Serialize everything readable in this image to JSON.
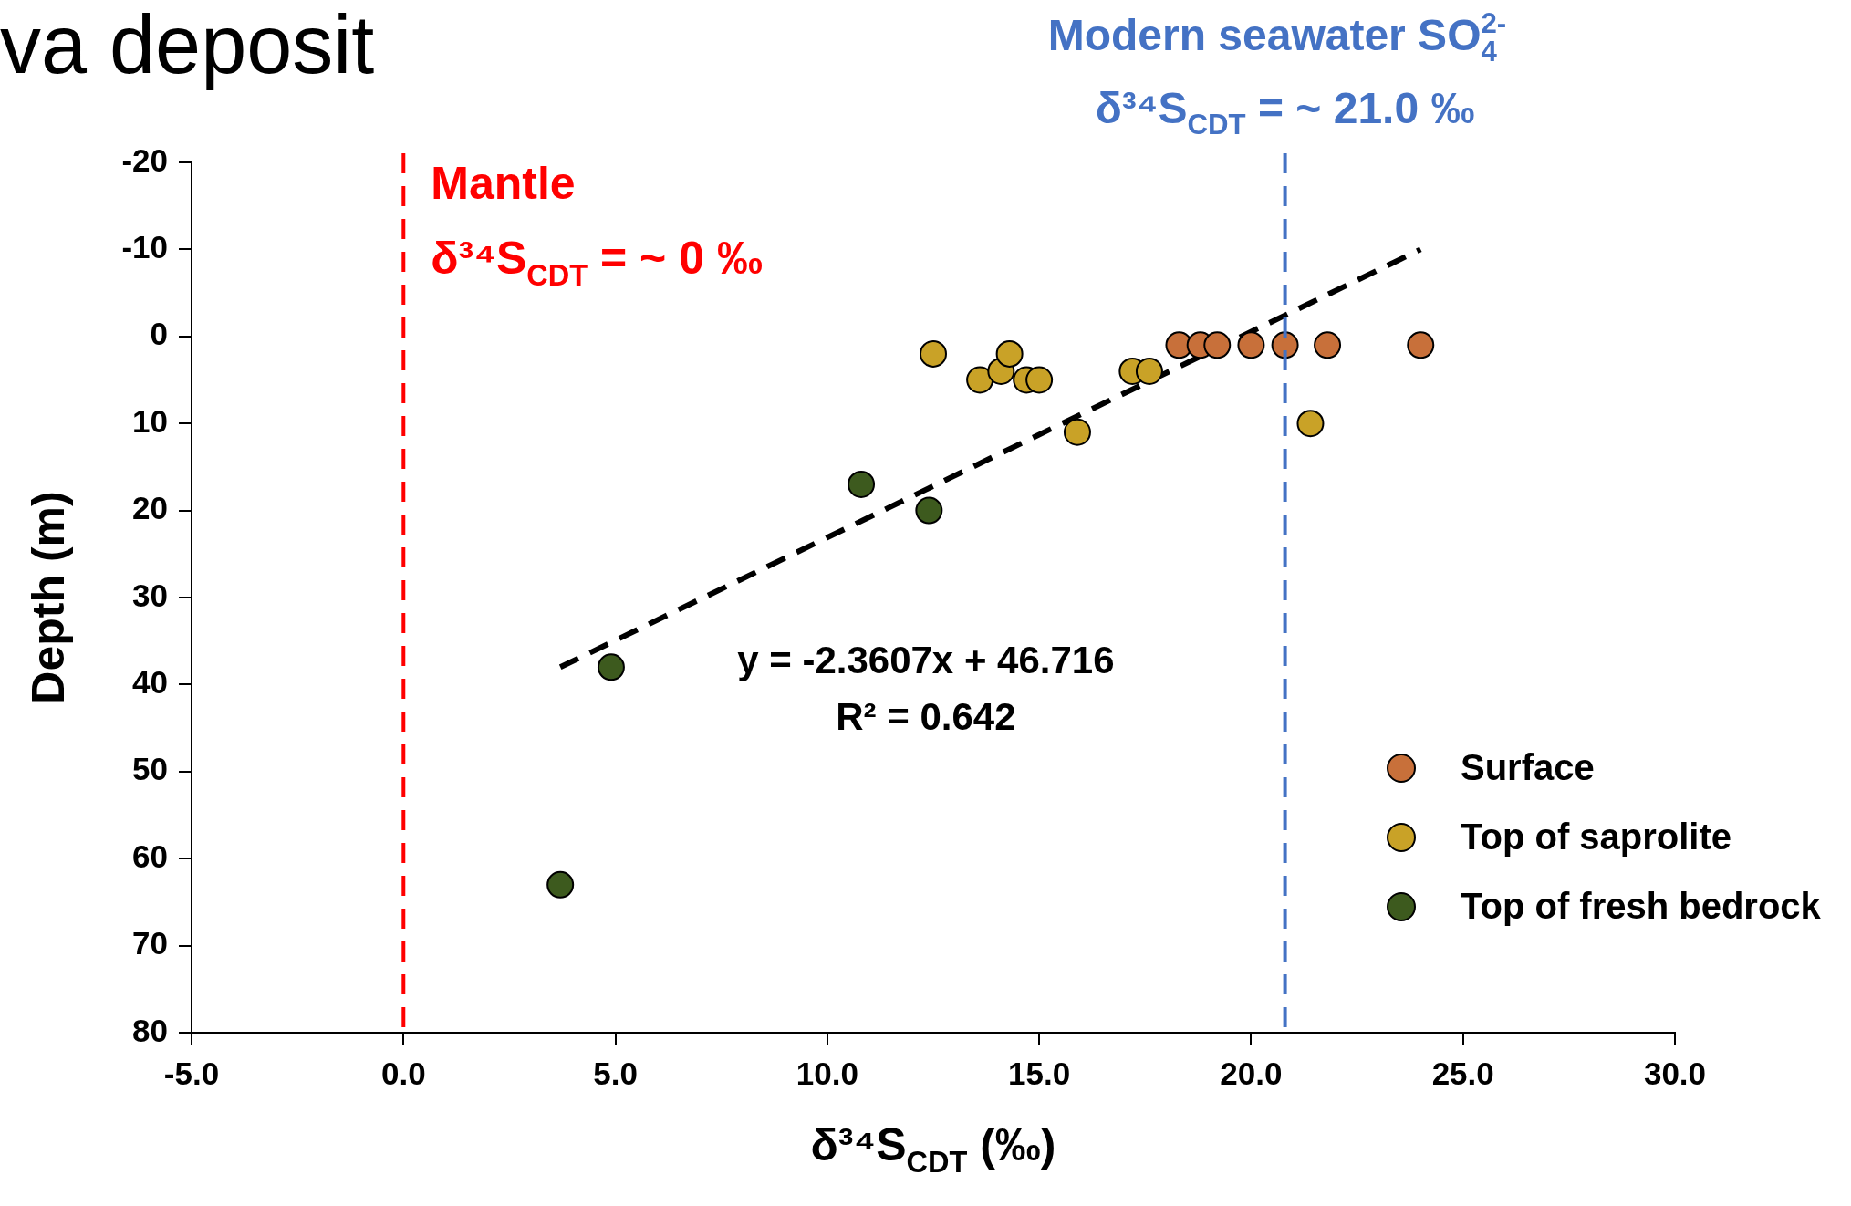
{
  "chart_data": {
    "type": "scatter",
    "title": "va deposit",
    "xlabel": "δ³⁴S$_{CDT}$ (‰)",
    "ylabel": "Depth (m)",
    "xlim": [
      -5,
      30
    ],
    "xticks": [
      {
        "value": -5,
        "label": "-5.0"
      },
      {
        "value": 0,
        "label": "0.0"
      },
      {
        "value": 5,
        "label": "5.0"
      },
      {
        "value": 10,
        "label": "10.0"
      },
      {
        "value": 15,
        "label": "15.0"
      },
      {
        "value": 20,
        "label": "20.0"
      },
      {
        "value": 25,
        "label": "25.0"
      },
      {
        "value": 30,
        "label": "30.0"
      }
    ],
    "ylim": [
      80,
      -20
    ],
    "yticks": [
      -20,
      -10,
      0,
      10,
      20,
      30,
      40,
      50,
      60,
      70,
      80
    ],
    "grid": false,
    "legend": "bottom right",
    "marker": "circle",
    "series": [
      {
        "name": "Surface",
        "color": "#c8703a",
        "x": [
          18.3,
          18.8,
          19.2,
          20.0,
          20.8,
          21.8,
          24.0
        ],
        "values": [
          1,
          1,
          1,
          1,
          1,
          1,
          1
        ]
      },
      {
        "name": "Top of saprolite",
        "color": "#c9a227",
        "x": [
          12.5,
          13.6,
          14.1,
          14.3,
          14.7,
          15.0,
          15.9,
          17.2,
          17.6,
          21.4
        ],
        "values": [
          2,
          5,
          4,
          2,
          5,
          5,
          11,
          4,
          4,
          10
        ]
      },
      {
        "name": "Top of fresh bedrock",
        "color": "#3d5a1e",
        "x": [
          10.8,
          12.4,
          4.9,
          3.7
        ],
        "values": [
          17,
          20,
          38,
          63
        ]
      },
      {
        "type": "line",
        "color": "#000000",
        "line_style": "dashed",
        "marker": "none",
        "x": [
          3.7,
          24.0
        ],
        "values": [
          38,
          -10
        ]
      }
    ],
    "ref_lines": [
      {
        "axis": "x",
        "value": 0,
        "label": "Mantle\nδ³⁴S$_{CDT}$ = ~ 0 ‰",
        "color": "#ff0000",
        "line_style": "dashed"
      },
      {
        "axis": "x",
        "value": 20.8,
        "label": "Modern seawater SO$_{4}$$^{2-}$\nδ³⁴S$_{CDT}$ = ~ 21.0 ‰",
        "color": "#4472c4",
        "line_style": "dashed"
      }
    ],
    "annotations": [
      "y = -2.3607x + 46.716",
      "R² = 0.642"
    ]
  }
}
